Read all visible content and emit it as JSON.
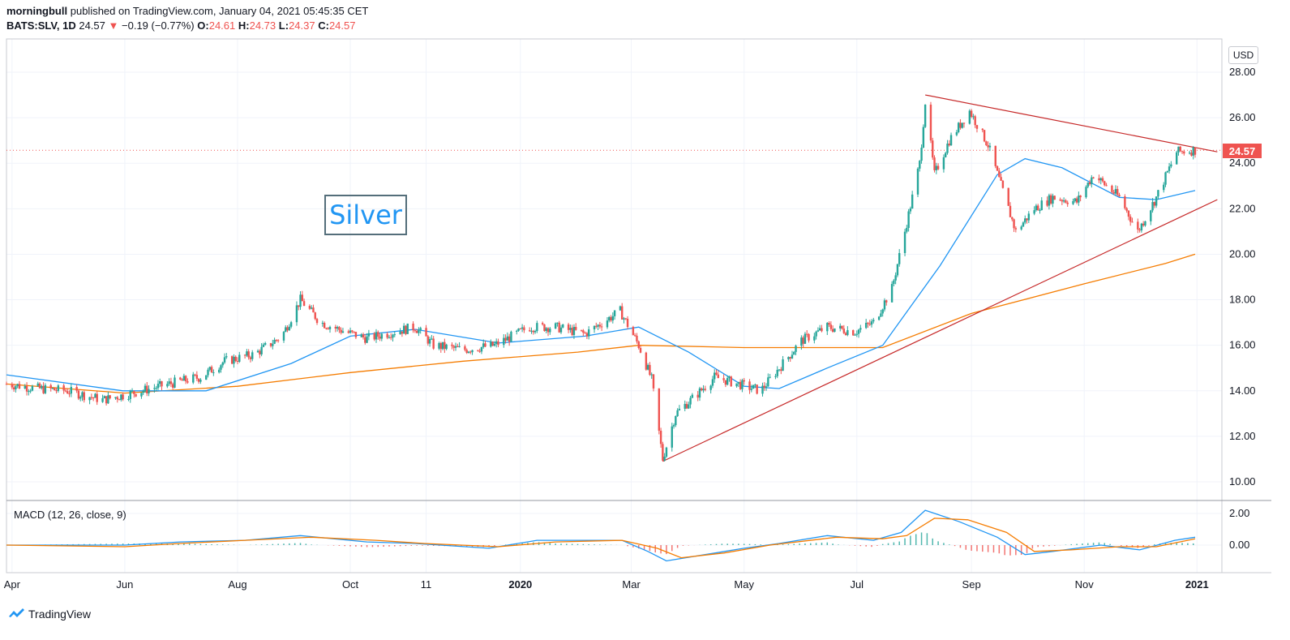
{
  "header": {
    "author": "morningbull",
    "published": "published on TradingView.com, January 04, 2021 05:45:35 CET",
    "symbol": "BATS:SLV, 1D",
    "last": "24.57",
    "change": "−0.19 (−0.77%)",
    "o_label": "O:",
    "o_value": "24.61",
    "h_label": "H:",
    "h_value": "24.73",
    "l_label": "L:",
    "l_value": "24.37",
    "c_label": "C:",
    "c_value": "24.57"
  },
  "annotation": {
    "text": "Silver"
  },
  "currency_button": "USD",
  "price_tag": "24.57",
  "macd_label": "MACD (12, 26, close, 9)",
  "brand": "TradingView",
  "colors": {
    "up": "#26a69a",
    "down": "#ef5350",
    "sma50": "#2196f3",
    "sma200": "#f57c00",
    "trendline": "#c62828",
    "macd": "#2196f3",
    "signal": "#f57c00"
  },
  "chart_data": [
    {
      "type": "candlestick",
      "symbol": "BATS:SLV",
      "ylim": [
        9.5,
        28.8
      ],
      "y_ticks": [
        "28.00",
        "26.00",
        "24.00",
        "22.00",
        "20.00",
        "18.00",
        "16.00",
        "14.00",
        "12.00",
        "10.00"
      ],
      "x_ticks": [
        "Apr",
        "Jun",
        "Aug",
        "Oct",
        "11",
        "2020",
        "Mar",
        "May",
        "Jul",
        "Sep",
        "Nov",
        "2021"
      ],
      "close_path": [
        [
          "2019-03-29",
          14.3
        ],
        [
          "2019-04-15",
          14.1
        ],
        [
          "2019-05-01",
          14.0
        ],
        [
          "2019-05-20",
          13.6
        ],
        [
          "2019-05-31",
          13.8
        ],
        [
          "2019-06-15",
          14.1
        ],
        [
          "2019-06-30",
          14.4
        ],
        [
          "2019-07-12",
          14.6
        ],
        [
          "2019-07-25",
          15.3
        ],
        [
          "2019-08-10",
          15.6
        ],
        [
          "2019-08-25",
          16.4
        ],
        [
          "2019-09-04",
          18.0
        ],
        [
          "2019-09-15",
          17.0
        ],
        [
          "2019-09-28",
          16.6
        ],
        [
          "2019-10-10",
          16.3
        ],
        [
          "2019-10-25",
          16.6
        ],
        [
          "2019-11-05",
          16.8
        ],
        [
          "2019-11-15",
          16.0
        ],
        [
          "2019-12-01",
          15.8
        ],
        [
          "2019-12-18",
          16.0
        ],
        [
          "2020-01-06",
          16.8
        ],
        [
          "2020-01-20",
          16.8
        ],
        [
          "2020-02-05",
          16.5
        ],
        [
          "2020-02-24",
          17.5
        ],
        [
          "2020-03-05",
          16.0
        ],
        [
          "2020-03-12",
          14.5
        ],
        [
          "2020-03-18",
          11.0
        ],
        [
          "2020-03-25",
          13.0
        ],
        [
          "2020-04-05",
          13.8
        ],
        [
          "2020-04-15",
          14.6
        ],
        [
          "2020-04-28",
          14.3
        ],
        [
          "2020-05-10",
          14.0
        ],
        [
          "2020-05-20",
          15.0
        ],
        [
          "2020-06-01",
          16.2
        ],
        [
          "2020-06-15",
          16.8
        ],
        [
          "2020-06-30",
          16.6
        ],
        [
          "2020-07-10",
          17.0
        ],
        [
          "2020-07-20",
          18.5
        ],
        [
          "2020-07-27",
          21.0
        ],
        [
          "2020-08-04",
          24.0
        ],
        [
          "2020-08-07",
          26.7
        ],
        [
          "2020-08-12",
          23.5
        ],
        [
          "2020-08-20",
          25.0
        ],
        [
          "2020-08-31",
          26.3
        ],
        [
          "2020-09-10",
          24.8
        ],
        [
          "2020-09-21",
          22.0
        ],
        [
          "2020-09-25",
          21.0
        ],
        [
          "2020-10-05",
          22.0
        ],
        [
          "2020-10-15",
          22.5
        ],
        [
          "2020-10-28",
          22.3
        ],
        [
          "2020-11-06",
          23.5
        ],
        [
          "2020-11-20",
          22.5
        ],
        [
          "2020-11-30",
          21.0
        ],
        [
          "2020-12-10",
          22.5
        ],
        [
          "2020-12-21",
          24.5
        ],
        [
          "2020-12-31",
          24.57
        ]
      ],
      "sma50": [
        [
          "2019-03-29",
          14.7
        ],
        [
          "2019-05-31",
          14.0
        ],
        [
          "2019-07-15",
          14.0
        ],
        [
          "2019-08-30",
          15.2
        ],
        [
          "2019-10-01",
          16.4
        ],
        [
          "2019-11-05",
          16.7
        ],
        [
          "2019-12-20",
          16.1
        ],
        [
          "2020-02-05",
          16.4
        ],
        [
          "2020-03-05",
          16.8
        ],
        [
          "2020-04-01",
          15.7
        ],
        [
          "2020-05-01",
          14.2
        ],
        [
          "2020-05-20",
          14.1
        ],
        [
          "2020-06-15",
          15.0
        ],
        [
          "2020-07-15",
          16.0
        ],
        [
          "2020-08-15",
          19.5
        ],
        [
          "2020-09-15",
          23.5
        ],
        [
          "2020-09-30",
          24.2
        ],
        [
          "2020-10-20",
          23.8
        ],
        [
          "2020-11-20",
          22.5
        ],
        [
          "2020-12-10",
          22.4
        ],
        [
          "2020-12-31",
          22.8
        ]
      ],
      "sma200": [
        [
          "2019-03-29",
          14.3
        ],
        [
          "2019-06-01",
          13.9
        ],
        [
          "2019-08-01",
          14.2
        ],
        [
          "2019-10-01",
          14.8
        ],
        [
          "2019-12-01",
          15.3
        ],
        [
          "2020-02-01",
          15.7
        ],
        [
          "2020-03-05",
          16.0
        ],
        [
          "2020-05-01",
          15.9
        ],
        [
          "2020-07-15",
          15.9
        ],
        [
          "2020-09-01",
          17.4
        ],
        [
          "2020-11-01",
          18.7
        ],
        [
          "2020-12-15",
          19.6
        ],
        [
          "2020-12-31",
          20.0
        ]
      ],
      "trendlines": [
        {
          "from": [
            "2020-03-18",
            10.9
          ],
          "to": [
            "2021-01-12",
            22.4
          ]
        },
        {
          "from": [
            "2020-08-07",
            27.0
          ],
          "to": [
            "2021-01-12",
            24.5
          ]
        }
      ],
      "price_line": 24.57
    },
    {
      "type": "line",
      "name": "MACD (12, 26, close, 9)",
      "ylim": [
        -1.4,
        2.6
      ],
      "y_ticks": [
        "2.00",
        "0.00"
      ],
      "macd": [
        [
          "2019-03-29",
          0.0
        ],
        [
          "2019-06-01",
          0.0
        ],
        [
          "2019-07-01",
          0.2
        ],
        [
          "2019-08-05",
          0.3
        ],
        [
          "2019-09-04",
          0.6
        ],
        [
          "2019-10-10",
          0.2
        ],
        [
          "2019-11-05",
          0.1
        ],
        [
          "2019-12-15",
          -0.2
        ],
        [
          "2020-01-10",
          0.3
        ],
        [
          "2020-02-25",
          0.3
        ],
        [
          "2020-03-10",
          -0.4
        ],
        [
          "2020-03-20",
          -1.0
        ],
        [
          "2020-04-10",
          -0.6
        ],
        [
          "2020-05-01",
          -0.2
        ],
        [
          "2020-05-20",
          0.1
        ],
        [
          "2020-06-15",
          0.6
        ],
        [
          "2020-07-10",
          0.3
        ],
        [
          "2020-07-25",
          0.8
        ],
        [
          "2020-08-07",
          2.2
        ],
        [
          "2020-08-25",
          1.5
        ],
        [
          "2020-09-15",
          0.5
        ],
        [
          "2020-09-30",
          -0.6
        ],
        [
          "2020-10-15",
          -0.4
        ],
        [
          "2020-11-10",
          0.0
        ],
        [
          "2020-12-01",
          -0.3
        ],
        [
          "2020-12-20",
          0.3
        ],
        [
          "2020-12-31",
          0.5
        ]
      ],
      "signal": [
        [
          "2019-03-29",
          0.0
        ],
        [
          "2019-06-01",
          -0.1
        ],
        [
          "2019-07-01",
          0.1
        ],
        [
          "2019-08-05",
          0.3
        ],
        [
          "2019-09-10",
          0.5
        ],
        [
          "2019-10-15",
          0.3
        ],
        [
          "2019-11-10",
          0.1
        ],
        [
          "2019-12-20",
          -0.1
        ],
        [
          "2020-01-20",
          0.2
        ],
        [
          "2020-02-25",
          0.3
        ],
        [
          "2020-03-15",
          -0.2
        ],
        [
          "2020-03-28",
          -0.8
        ],
        [
          "2020-04-20",
          -0.5
        ],
        [
          "2020-05-15",
          0.0
        ],
        [
          "2020-06-20",
          0.5
        ],
        [
          "2020-07-15",
          0.4
        ],
        [
          "2020-07-28",
          0.6
        ],
        [
          "2020-08-12",
          1.7
        ],
        [
          "2020-08-30",
          1.6
        ],
        [
          "2020-09-20",
          0.8
        ],
        [
          "2020-10-05",
          -0.4
        ],
        [
          "2020-10-25",
          -0.3
        ],
        [
          "2020-11-20",
          -0.1
        ],
        [
          "2020-12-10",
          -0.1
        ],
        [
          "2020-12-31",
          0.4
        ]
      ]
    }
  ]
}
